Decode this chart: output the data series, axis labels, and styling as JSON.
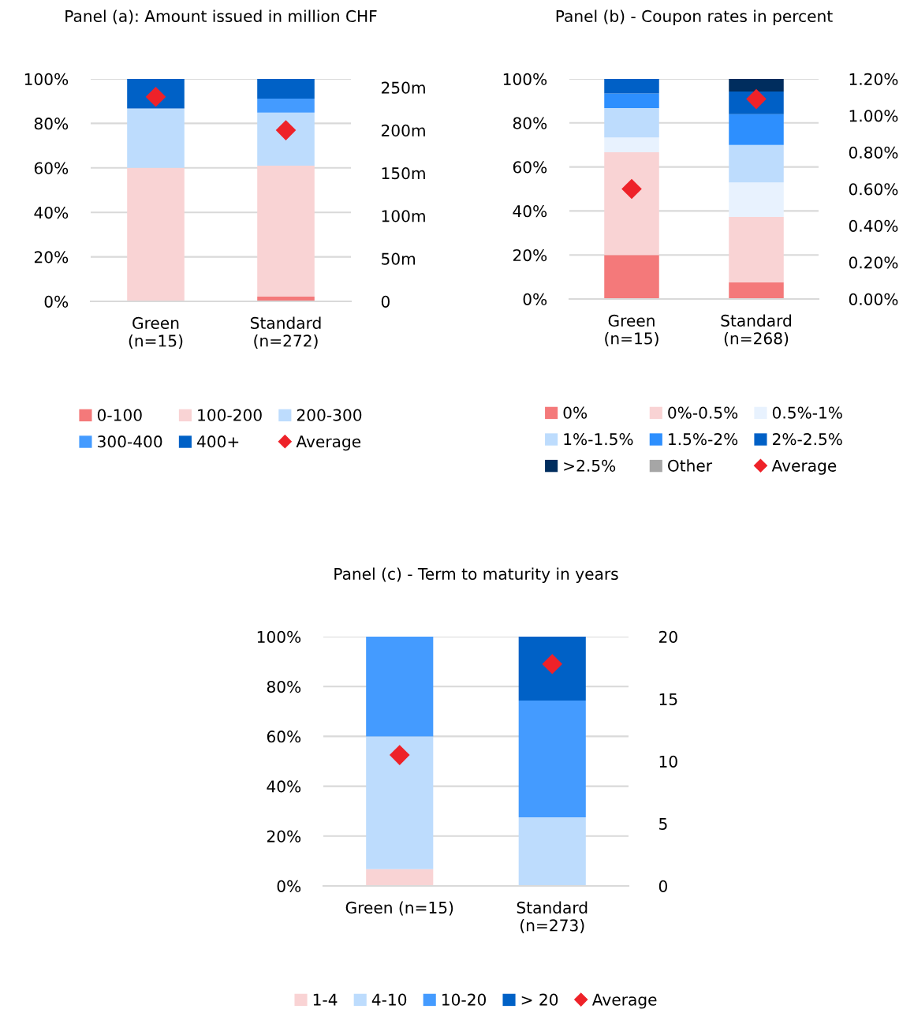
{
  "chart_data": [
    {
      "type": "bar",
      "title": "Panel (a): Amount issued in million CHF",
      "categories": [
        "Green\n(n=15)",
        "Standard\n(n=272)"
      ],
      "stacked": true,
      "series": [
        {
          "name": "0-100",
          "color": "#f4797a",
          "values": [
            0,
            2.1
          ]
        },
        {
          "name": "100-200",
          "color": "#f9d3d4",
          "values": [
            60,
            58.9
          ]
        },
        {
          "name": "200-300",
          "color": "#bddcfd",
          "values": [
            26.7,
            23.8
          ]
        },
        {
          "name": "300-400",
          "color": "#449bff",
          "values": [
            0,
            6.3
          ]
        },
        {
          "name": "400+",
          "color": "#0061c6",
          "values": [
            13.3,
            8.9
          ]
        },
        {
          "name": "Average",
          "color": "#ee2229",
          "type": "scatter",
          "axis": "y2",
          "marker": "diamond",
          "values": [
            239,
            200
          ]
        }
      ],
      "ylim": [
        0,
        100
      ],
      "yticks": [
        {
          "value": 0,
          "label": "0%"
        },
        {
          "value": 20,
          "label": "20%"
        },
        {
          "value": 40,
          "label": "40%"
        },
        {
          "value": 60,
          "label": "60%"
        },
        {
          "value": 80,
          "label": "80%"
        },
        {
          "value": 100,
          "label": "100%"
        }
      ],
      "y2lim": [
        0,
        260
      ],
      "y2ticks": [
        0,
        {
          "value": 50,
          "label": "50m"
        },
        {
          "value": 100,
          "label": "100m"
        },
        {
          "value": 150,
          "label": "150m"
        },
        {
          "value": 200,
          "label": "200m"
        },
        {
          "value": 250,
          "label": "250m"
        }
      ],
      "grid": "y",
      "legend": "bottom"
    },
    {
      "type": "bar",
      "title": "Panel (b) - Coupon rates in percent",
      "categories": [
        "Green\n(n=15)",
        "Standard\n(n=268)"
      ],
      "stacked": true,
      "series": [
        {
          "name": "0%",
          "color": "#f4797a",
          "values": [
            20,
            7.6
          ]
        },
        {
          "name": "0%-0.5%",
          "color": "#f9d3d4",
          "values": [
            46.7,
            29.7
          ]
        },
        {
          "name": "0.5%-1%",
          "color": "#e8f2fe",
          "values": [
            6.7,
            15.7
          ]
        },
        {
          "name": "1%-1.5%",
          "color": "#bddcfd",
          "values": [
            13.3,
            17.0
          ]
        },
        {
          "name": "1.5%-2%",
          "color": "#2d8ffe",
          "values": [
            6.7,
            14.0
          ]
        },
        {
          "name": "2%-2.5%",
          "color": "#0060c6",
          "values": [
            6.7,
            10.3
          ]
        },
        {
          "name": ">2.5%",
          "color": "#002d5e",
          "values": [
            0,
            5.7
          ]
        },
        {
          "name": "Other",
          "color": "#a6a6a6",
          "values": [
            0,
            0
          ]
        },
        {
          "name": "Average",
          "color": "#ee2229",
          "type": "scatter",
          "axis": "y2",
          "marker": "diamond",
          "values": [
            0.6,
            1.09
          ]
        }
      ],
      "ylim": [
        0,
        100
      ],
      "yticks": [
        {
          "value": 0,
          "label": "0%"
        },
        {
          "value": 20,
          "label": "20%"
        },
        {
          "value": 40,
          "label": "40%"
        },
        {
          "value": 60,
          "label": "60%"
        },
        {
          "value": 80,
          "label": "80%"
        },
        {
          "value": 100,
          "label": "100%"
        }
      ],
      "y2lim": [
        0,
        1.2
      ],
      "y2ticks": [
        {
          "value": 0,
          "label": "0.00%"
        },
        {
          "value": 0.2,
          "label": "0.20%"
        },
        {
          "value": 0.4,
          "label": "0.40%"
        },
        {
          "value": 0.6,
          "label": "0.60%"
        },
        {
          "value": 0.8,
          "label": "0.80%"
        },
        {
          "value": 1.0,
          "label": "1.00%"
        },
        {
          "value": 1.2,
          "label": "1.20%"
        }
      ],
      "grid": "y",
      "legend": "bottom"
    },
    {
      "type": "bar",
      "title": "Panel (c) - Term to maturity in years",
      "categories": [
        "Green (n=15)",
        "Standard\n(n=273)"
      ],
      "stacked": true,
      "series": [
        {
          "name": "1-4",
          "color": "#f9d3d4",
          "values": [
            6.7,
            0
          ]
        },
        {
          "name": "4-10",
          "color": "#bddcfd",
          "values": [
            53.3,
            27.5
          ]
        },
        {
          "name": "10-20",
          "color": "#449bff",
          "values": [
            40,
            46.9
          ]
        },
        {
          "name": "> 20",
          "color": "#0061c6",
          "values": [
            0,
            25.6
          ]
        },
        {
          "name": "Average",
          "color": "#ee2229",
          "type": "scatter",
          "axis": "y2",
          "marker": "diamond",
          "values": [
            10.5,
            17.8
          ]
        }
      ],
      "ylim": [
        0,
        100
      ],
      "yticks": [
        {
          "value": 0,
          "label": "0%"
        },
        {
          "value": 20,
          "label": "20%"
        },
        {
          "value": 40,
          "label": "40%"
        },
        {
          "value": 60,
          "label": "60%"
        },
        {
          "value": 80,
          "label": "80%"
        },
        {
          "value": 100,
          "label": "100%"
        }
      ],
      "y2lim": [
        0,
        20
      ],
      "y2ticks": [
        0,
        5,
        10,
        15,
        20
      ],
      "grid": "y",
      "legend": "bottom"
    }
  ]
}
